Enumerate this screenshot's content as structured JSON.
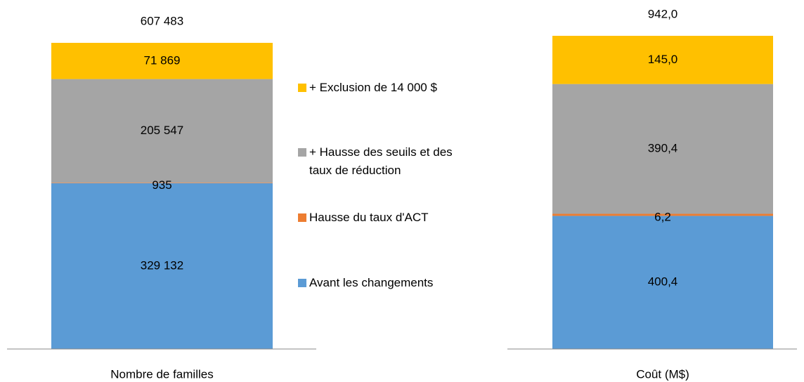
{
  "chart_data": [
    {
      "type": "stacked-bar",
      "category": "Nombre de familles",
      "total": 607483,
      "total_label": "607 483",
      "series": [
        {
          "name": "Avant les changements",
          "color": "#5B9BD5",
          "values": [
            329132
          ],
          "value_labels": [
            "329 132"
          ]
        },
        {
          "name": "Hausse du taux d'ACT",
          "color": "#ED7D31",
          "values": [
            935
          ],
          "value_labels": [
            "935"
          ]
        },
        {
          "name": "+ Hausse des seuils et des taux de réduction",
          "color": "#A5A5A5",
          "values": [
            205547
          ],
          "value_labels": [
            "205 547"
          ]
        },
        {
          "name": "+ Exclusion de 14 000 $",
          "color": "#FFC000",
          "values": [
            71869
          ],
          "value_labels": [
            "71 869"
          ]
        }
      ]
    },
    {
      "type": "stacked-bar",
      "category": "Coût (M$)",
      "total": 942.0,
      "total_label": "942,0",
      "series": [
        {
          "color": "#5B9BD5",
          "values": [
            400.4
          ],
          "value_labels": [
            "400,4"
          ]
        },
        {
          "color": "#ED7D31",
          "values": [
            6.2
          ],
          "value_labels": [
            "6,2"
          ]
        },
        {
          "color": "#A5A5A5",
          "values": [
            390.4
          ],
          "value_labels": [
            "390,4"
          ]
        },
        {
          "color": "#FFC000",
          "values": [
            145.0
          ],
          "value_labels": [
            "145,0"
          ]
        }
      ]
    }
  ]
}
